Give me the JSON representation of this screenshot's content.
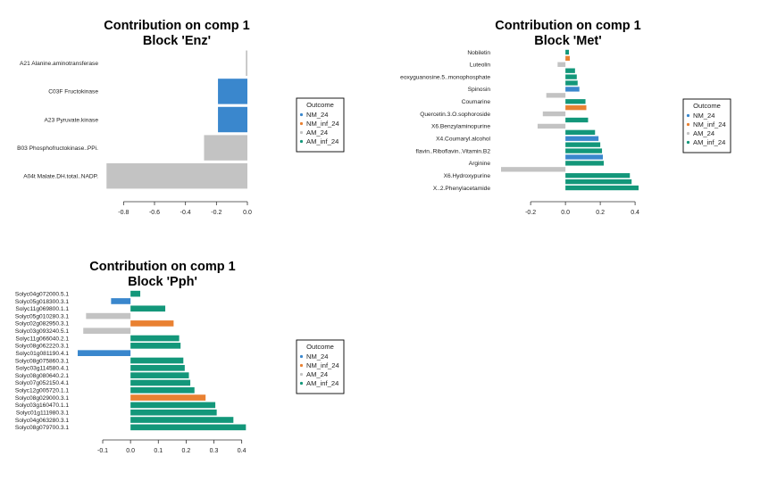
{
  "colors": {
    "NM_24": "#3a87cd",
    "NM_inf_24": "#e98132",
    "AM_24": "#c3c3c3",
    "AM_inf_24": "#13977a"
  },
  "chart_data": [
    {
      "type": "bar",
      "orientation": "horizontal",
      "title": [
        "Contribution on comp 1",
        "Block 'Enz'"
      ],
      "xlim": [
        -0.9,
        0.0
      ],
      "xticks": [
        "-0.8",
        "-0.6",
        "-0.4",
        "-0.2",
        "0.0"
      ],
      "categories": [
        "A21  Alanine.aminotransferase",
        "C03F  Fructokinase",
        "A23  Pyruvate.kinase",
        "B03  Phosphofructokinase..PPi.",
        "A04t  Malate.DH.total..NADP."
      ],
      "values": [
        -0.01,
        -0.19,
        -0.19,
        -0.28,
        -0.91
      ],
      "outcome": [
        "AM_24",
        "NM_24",
        "NM_24",
        "AM_24",
        "AM_24"
      ],
      "legend": {
        "title": "Outcome",
        "entries": [
          "NM_24",
          "NM_inf_24",
          "AM_24",
          "AM_inf_24"
        ]
      }
    },
    {
      "type": "bar",
      "orientation": "horizontal",
      "title": [
        "Contribution on comp 1",
        "Block 'Met'"
      ],
      "xlim": [
        -0.37,
        0.42
      ],
      "xticks": [
        "-0.2",
        "0.0",
        "0.2",
        "0.4"
      ],
      "categories": [
        "Nobiletin",
        "",
        "Luteolin",
        "",
        "eoxyguanosine.5..monophosphate",
        "",
        "Spinosin",
        "",
        "Coumarine",
        "",
        "Quercetin.3.O.sophoroside",
        "",
        "X6.Benzylaminopurine",
        "",
        "X4.Coumaryl.alcohol",
        "",
        "flavin..Riboflavin..Vitamin.B2",
        "",
        "Arginine",
        "",
        "X6.Hydroxypurine",
        "",
        "X..2.Phenylacetamide"
      ],
      "values": [
        0.02,
        0.025,
        -0.045,
        0.055,
        0.065,
        0.07,
        0.08,
        -0.11,
        0.115,
        0.12,
        -0.13,
        0.13,
        -0.16,
        0.17,
        0.19,
        0.2,
        0.21,
        0.215,
        0.22,
        -0.37,
        0.37,
        0.38,
        0.42
      ],
      "outcome": [
        "AM_inf_24",
        "NM_inf_24",
        "AM_24",
        "AM_inf_24",
        "AM_inf_24",
        "AM_inf_24",
        "NM_24",
        "AM_24",
        "AM_inf_24",
        "NM_inf_24",
        "AM_24",
        "AM_inf_24",
        "AM_24",
        "AM_inf_24",
        "NM_24",
        "AM_inf_24",
        "AM_inf_24",
        "NM_24",
        "AM_inf_24",
        "AM_24",
        "AM_inf_24",
        "AM_inf_24",
        "AM_inf_24"
      ],
      "legend": {
        "title": "Outcome",
        "entries": [
          "NM_24",
          "NM_inf_24",
          "AM_24",
          "AM_inf_24"
        ]
      }
    },
    {
      "type": "bar",
      "orientation": "horizontal",
      "title": [
        "Contribution on comp 1",
        "Block 'Pph'"
      ],
      "xlim": [
        -0.19,
        0.43
      ],
      "xticks": [
        "-0.1",
        "0.0",
        "0.1",
        "0.2",
        "0.3",
        "0.4"
      ],
      "categories": [
        "Solyc04g072000.5.1",
        "Solyc05g018300.3.1",
        "Solyc11g069800.1.1",
        "Solyc05g010280.3.1",
        "Solyc02g082950.3.1",
        "Solyc03g093240.5.1",
        "Solyc11g066040.2.1",
        "Solyc08g062220.3.1",
        "Solyc01g081190.4.1",
        "Solyc08g075860.3.1",
        "Solyc03g114580.4.1",
        "Solyc08g080640.2.1",
        "Solyc07g052150.4.1",
        "Solyc12g005720.1.1",
        "Solyc08g029000.3.1",
        "Solyc03g160470.1.1",
        "Solyc01g111980.3.1",
        "Solyc04g063280.3.1",
        "Solyc08g079700.3.1"
      ],
      "values": [
        0.035,
        -0.07,
        0.125,
        -0.16,
        0.155,
        -0.17,
        0.175,
        0.18,
        -0.19,
        0.19,
        0.195,
        0.21,
        0.215,
        0.23,
        0.27,
        0.305,
        0.31,
        0.37,
        0.415
      ],
      "outcome": [
        "AM_inf_24",
        "NM_24",
        "AM_inf_24",
        "AM_24",
        "NM_inf_24",
        "AM_24",
        "AM_inf_24",
        "AM_inf_24",
        "NM_24",
        "AM_inf_24",
        "AM_inf_24",
        "AM_inf_24",
        "AM_inf_24",
        "AM_inf_24",
        "NM_inf_24",
        "AM_inf_24",
        "AM_inf_24",
        "AM_inf_24",
        "AM_inf_24"
      ],
      "legend": {
        "title": "Outcome",
        "entries": [
          "NM_24",
          "NM_inf_24",
          "AM_24",
          "AM_inf_24"
        ]
      }
    }
  ]
}
